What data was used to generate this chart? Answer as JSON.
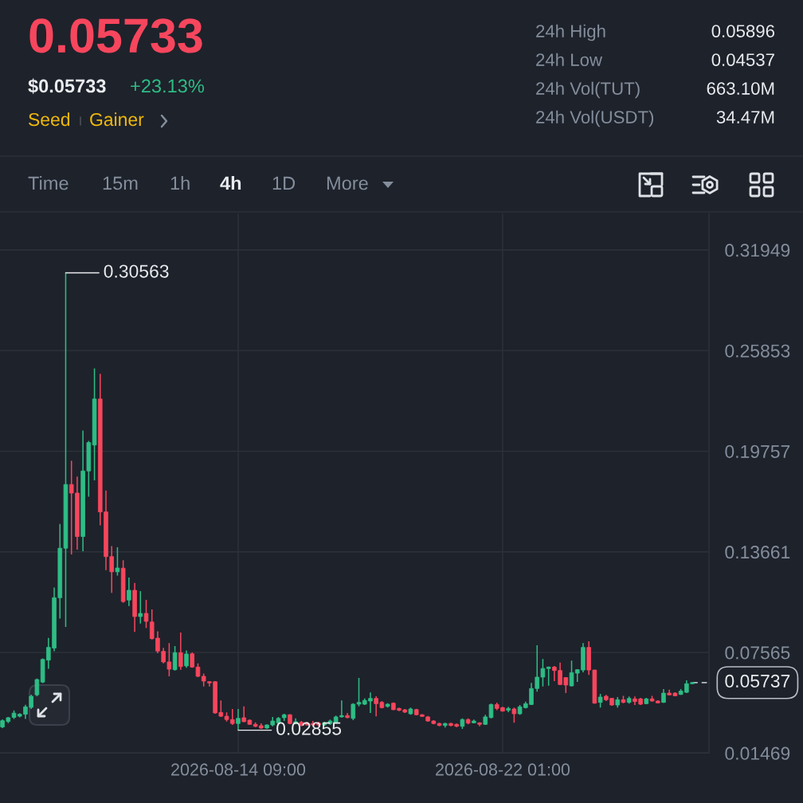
{
  "chart_data": {
    "type": "candlestick",
    "x": [
      "2026-08-07T13:00",
      "2026-08-07T17:00",
      "2026-08-07T21:00",
      "2026-08-08T01:00",
      "2026-08-08T05:00",
      "2026-08-08T09:00",
      "2026-08-08T13:00",
      "2026-08-08T17:00",
      "2026-08-08T21:00",
      "2026-08-09T01:00",
      "2026-08-09T05:00",
      "2026-08-09T09:00",
      "2026-08-09T13:00",
      "2026-08-09T17:00",
      "2026-08-09T21:00",
      "2026-08-10T01:00",
      "2026-08-10T05:00",
      "2026-08-10T09:00",
      "2026-08-10T13:00",
      "2026-08-10T17:00",
      "2026-08-10T21:00",
      "2026-08-11T01:00",
      "2026-08-11T05:00",
      "2026-08-11T09:00",
      "2026-08-11T13:00",
      "2026-08-11T17:00",
      "2026-08-11T21:00",
      "2026-08-12T01:00",
      "2026-08-12T05:00",
      "2026-08-12T09:00",
      "2026-08-12T13:00",
      "2026-08-12T17:00",
      "2026-08-12T21:00",
      "2026-08-13T01:00",
      "2026-08-13T05:00",
      "2026-08-13T09:00",
      "2026-08-13T13:00",
      "2026-08-13T17:00",
      "2026-08-13T21:00",
      "2026-08-14T01:00",
      "2026-08-14T05:00",
      "2026-08-14T09:00",
      "2026-08-14T13:00",
      "2026-08-14T17:00",
      "2026-08-14T21:00",
      "2026-08-15T01:00",
      "2026-08-15T05:00",
      "2026-08-15T09:00",
      "2026-08-15T13:00",
      "2026-08-15T17:00",
      "2026-08-15T21:00",
      "2026-08-16T01:00",
      "2026-08-16T05:00",
      "2026-08-16T09:00",
      "2026-08-16T13:00",
      "2026-08-16T17:00",
      "2026-08-16T21:00",
      "2026-08-17T01:00",
      "2026-08-17T05:00",
      "2026-08-17T09:00",
      "2026-08-17T13:00",
      "2026-08-17T17:00",
      "2026-08-17T21:00",
      "2026-08-18T01:00",
      "2026-08-18T05:00",
      "2026-08-18T09:00",
      "2026-08-18T13:00",
      "2026-08-18T17:00",
      "2026-08-18T21:00",
      "2026-08-19T01:00",
      "2026-08-19T05:00",
      "2026-08-19T09:00",
      "2026-08-19T13:00",
      "2026-08-19T17:00",
      "2026-08-19T21:00",
      "2026-08-20T01:00",
      "2026-08-20T05:00",
      "2026-08-20T09:00",
      "2026-08-20T13:00",
      "2026-08-20T17:00",
      "2026-08-20T21:00",
      "2026-08-21T01:00",
      "2026-08-21T05:00",
      "2026-08-21T09:00",
      "2026-08-21T13:00",
      "2026-08-21T17:00",
      "2026-08-21T21:00",
      "2026-08-22T01:00",
      "2026-08-22T05:00",
      "2026-08-22T09:00",
      "2026-08-22T13:00",
      "2026-08-22T17:00",
      "2026-08-22T21:00",
      "2026-08-23T01:00",
      "2026-08-23T05:00",
      "2026-08-23T09:00",
      "2026-08-23T13:00",
      "2026-08-23T17:00",
      "2026-08-23T21:00",
      "2026-08-24T01:00",
      "2026-08-24T05:00",
      "2026-08-24T09:00",
      "2026-08-24T13:00",
      "2026-08-24T17:00",
      "2026-08-24T21:00",
      "2026-08-25T01:00",
      "2026-08-25T05:00",
      "2026-08-25T09:00",
      "2026-08-25T13:00",
      "2026-08-25T17:00",
      "2026-08-25T21:00",
      "2026-08-26T01:00",
      "2026-08-26T05:00",
      "2026-08-26T09:00",
      "2026-08-26T13:00",
      "2026-08-26T17:00",
      "2026-08-26T21:00",
      "2026-08-27T01:00",
      "2026-08-27T05:00",
      "2026-08-27T09:00",
      "2026-08-27T13:00"
    ],
    "ohlc": [
      [
        0.0305,
        0.0351,
        0.0298,
        0.0343
      ],
      [
        0.0338,
        0.0366,
        0.0328,
        0.0361
      ],
      [
        0.0363,
        0.0405,
        0.0353,
        0.0389
      ],
      [
        0.037,
        0.0389,
        0.0363,
        0.0382
      ],
      [
        0.0382,
        0.0439,
        0.0353,
        0.0427
      ],
      [
        0.0424,
        0.0501,
        0.0414,
        0.0491
      ],
      [
        0.05,
        0.0599,
        0.0491,
        0.0592
      ],
      [
        0.0577,
        0.072,
        0.0571,
        0.0714
      ],
      [
        0.071,
        0.0844,
        0.0657,
        0.0787
      ],
      [
        0.0783,
        0.115,
        0.0764,
        0.1088
      ],
      [
        0.1088,
        0.1535,
        0.0962,
        0.1388
      ],
      [
        0.1388,
        0.30563,
        0.0911,
        0.1774
      ],
      [
        0.1774,
        0.1918,
        0.135,
        0.1722
      ],
      [
        0.1722,
        0.1822,
        0.1379,
        0.1459
      ],
      [
        0.1459,
        0.2101,
        0.1369,
        0.1856
      ],
      [
        0.1856,
        0.2038,
        0.17,
        0.2028
      ],
      [
        0.2013,
        0.2477,
        0.1799,
        0.2292
      ],
      [
        0.2292,
        0.2445,
        0.1526,
        0.1608
      ],
      [
        0.1608,
        0.1738,
        0.1255,
        0.1337
      ],
      [
        0.1337,
        0.1401,
        0.1117,
        0.1245
      ],
      [
        0.1245,
        0.1394,
        0.1222,
        0.1268
      ],
      [
        0.1267,
        0.1315,
        0.1057,
        0.1065
      ],
      [
        0.1074,
        0.121,
        0.1038,
        0.1133
      ],
      [
        0.1133,
        0.1178,
        0.0881,
        0.0974
      ],
      [
        0.0974,
        0.1128,
        0.0932,
        0.0993
      ],
      [
        0.0993,
        0.1075,
        0.0905,
        0.0945
      ],
      [
        0.0941,
        0.1017,
        0.0835,
        0.084
      ],
      [
        0.0843,
        0.0885,
        0.0752,
        0.0765
      ],
      [
        0.0763,
        0.0784,
        0.069,
        0.0699
      ],
      [
        0.0699,
        0.0813,
        0.0612,
        0.0655
      ],
      [
        0.0652,
        0.0795,
        0.0647,
        0.0755
      ],
      [
        0.0755,
        0.0877,
        0.0652,
        0.0671
      ],
      [
        0.0675,
        0.0768,
        0.0663,
        0.0747
      ],
      [
        0.0748,
        0.0757,
        0.0663,
        0.0668
      ],
      [
        0.0668,
        0.069,
        0.0607,
        0.0612
      ],
      [
        0.0612,
        0.0628,
        0.055,
        0.0583
      ],
      [
        0.0579,
        0.0583,
        0.055,
        0.0572
      ],
      [
        0.0579,
        0.0583,
        0.0385,
        0.039
      ],
      [
        0.0393,
        0.0466,
        0.0366,
        0.037
      ],
      [
        0.037,
        0.0393,
        0.0338,
        0.035
      ],
      [
        0.035,
        0.0414,
        0.0317,
        0.0326
      ],
      [
        0.0326,
        0.0414,
        0.02855,
        0.0357
      ],
      [
        0.0361,
        0.043,
        0.0334,
        0.0337
      ],
      [
        0.0346,
        0.0351,
        0.0317,
        0.0321
      ],
      [
        0.0321,
        0.0333,
        0.0304,
        0.0309
      ],
      [
        0.0313,
        0.0327,
        0.0293,
        0.0298
      ],
      [
        0.0298,
        0.0321,
        0.0293,
        0.0317
      ],
      [
        0.0317,
        0.0366,
        0.0309,
        0.0341
      ],
      [
        0.033,
        0.0366,
        0.0314,
        0.0357
      ],
      [
        0.0361,
        0.0385,
        0.0341,
        0.0379
      ],
      [
        0.0379,
        0.0382,
        0.0321,
        0.0326
      ],
      [
        0.0326,
        0.0357,
        0.0321,
        0.0337
      ],
      [
        0.0333,
        0.0341,
        0.0309,
        0.0314
      ],
      [
        0.0328,
        0.0337,
        0.0314,
        0.0317
      ],
      [
        0.0326,
        0.0341,
        0.0314,
        0.0317
      ],
      [
        0.0328,
        0.0337,
        0.0309,
        0.0317
      ],
      [
        0.0317,
        0.0337,
        0.0312,
        0.033
      ],
      [
        0.0326,
        0.035,
        0.0317,
        0.0341
      ],
      [
        0.033,
        0.0374,
        0.0326,
        0.0366
      ],
      [
        0.0366,
        0.0466,
        0.0362,
        0.0374
      ],
      [
        0.0374,
        0.039,
        0.0357,
        0.0362
      ],
      [
        0.0357,
        0.0449,
        0.0346,
        0.0443
      ],
      [
        0.0443,
        0.0602,
        0.043,
        0.0454
      ],
      [
        0.0443,
        0.0478,
        0.0438,
        0.0466
      ],
      [
        0.0462,
        0.0514,
        0.039,
        0.0478
      ],
      [
        0.0478,
        0.0491,
        0.0369,
        0.0446
      ],
      [
        0.0454,
        0.0462,
        0.0417,
        0.0422
      ],
      [
        0.043,
        0.0449,
        0.0422,
        0.0443
      ],
      [
        0.0449,
        0.0454,
        0.0406,
        0.041
      ],
      [
        0.0417,
        0.0422,
        0.0401,
        0.0406
      ],
      [
        0.0409,
        0.0414,
        0.039,
        0.0395
      ],
      [
        0.0385,
        0.0422,
        0.0379,
        0.0414
      ],
      [
        0.041,
        0.0415,
        0.0375,
        0.0379
      ],
      [
        0.0379,
        0.0382,
        0.0366,
        0.0369
      ],
      [
        0.0366,
        0.0371,
        0.0337,
        0.0341
      ],
      [
        0.0341,
        0.0346,
        0.0321,
        0.0326
      ],
      [
        0.0326,
        0.033,
        0.0309,
        0.0314
      ],
      [
        0.0314,
        0.033,
        0.0301,
        0.0326
      ],
      [
        0.0326,
        0.033,
        0.0309,
        0.0314
      ],
      [
        0.0321,
        0.0326,
        0.0304,
        0.0309
      ],
      [
        0.0309,
        0.0357,
        0.0293,
        0.035
      ],
      [
        0.035,
        0.0357,
        0.0321,
        0.0328
      ],
      [
        0.033,
        0.035,
        0.0327,
        0.0341
      ],
      [
        0.033,
        0.0333,
        0.0309,
        0.0321
      ],
      [
        0.0321,
        0.0379,
        0.0317,
        0.0366
      ],
      [
        0.0362,
        0.0446,
        0.0357,
        0.0441
      ],
      [
        0.0441,
        0.0452,
        0.0406,
        0.0417
      ],
      [
        0.0422,
        0.0427,
        0.0398,
        0.0401
      ],
      [
        0.0406,
        0.0427,
        0.0395,
        0.0417
      ],
      [
        0.0414,
        0.0422,
        0.033,
        0.0385
      ],
      [
        0.0385,
        0.0438,
        0.0379,
        0.0427
      ],
      [
        0.0422,
        0.0459,
        0.0417,
        0.0446
      ],
      [
        0.0441,
        0.0572,
        0.0438,
        0.0538
      ],
      [
        0.0538,
        0.08,
        0.0519,
        0.0607
      ],
      [
        0.0607,
        0.0717,
        0.055,
        0.0659
      ],
      [
        0.0659,
        0.0671,
        0.0555,
        0.0668
      ],
      [
        0.0668,
        0.0675,
        0.0583,
        0.0647
      ],
      [
        0.0647,
        0.0695,
        0.0559,
        0.0562
      ],
      [
        0.0604,
        0.0607,
        0.051,
        0.0559
      ],
      [
        0.0554,
        0.0707,
        0.055,
        0.0634
      ],
      [
        0.0631,
        0.0655,
        0.0578,
        0.0652
      ],
      [
        0.065,
        0.0813,
        0.0636,
        0.0787
      ],
      [
        0.0787,
        0.0824,
        0.062,
        0.065
      ],
      [
        0.065,
        0.0652,
        0.0446,
        0.0449
      ],
      [
        0.0454,
        0.0506,
        0.0422,
        0.0486
      ],
      [
        0.0491,
        0.0499,
        0.0462,
        0.047
      ],
      [
        0.0478,
        0.0481,
        0.0433,
        0.0438
      ],
      [
        0.0438,
        0.0486,
        0.0422,
        0.047
      ],
      [
        0.047,
        0.0494,
        0.0449,
        0.0454
      ],
      [
        0.0454,
        0.049,
        0.0446,
        0.0478
      ],
      [
        0.0475,
        0.049,
        0.0438,
        0.0459
      ],
      [
        0.0475,
        0.0481,
        0.0438,
        0.0443
      ],
      [
        0.0446,
        0.0481,
        0.0443,
        0.0475
      ],
      [
        0.0475,
        0.0494,
        0.0459,
        0.0462
      ],
      [
        0.0462,
        0.0467,
        0.0449,
        0.0451
      ],
      [
        0.0454,
        0.0535,
        0.0451,
        0.051
      ],
      [
        0.051,
        0.0531,
        0.0497,
        0.0499
      ],
      [
        0.051,
        0.0515,
        0.0491,
        0.0494
      ],
      [
        0.0502,
        0.0535,
        0.0499,
        0.0522
      ],
      [
        0.0515,
        0.0588,
        0.051,
        0.0567
      ],
      [
        0.0567,
        0.0577,
        0.0565,
        0.05737
      ]
    ],
    "colors": [
      "#2ebd85",
      "#2ebd85",
      "#2ebd85",
      "#2ebd85",
      "#2ebd85",
      "#2ebd85",
      "#2ebd85",
      "#2ebd85",
      "#2ebd85",
      "#2ebd85",
      "#2ebd85",
      "#2ebd85",
      "#f6465d",
      "#f6465d",
      "#2ebd85",
      "#2ebd85",
      "#2ebd85",
      "#f6465d",
      "#f6465d",
      "#f6465d",
      "#2ebd85",
      "#f6465d",
      "#2ebd85",
      "#f6465d",
      "#2ebd85",
      "#f6465d",
      "#f6465d",
      "#f6465d",
      "#f6465d",
      "#f6465d",
      "#2ebd85",
      "#f6465d",
      "#2ebd85",
      "#f6465d",
      "#f6465d",
      "#f6465d",
      "#f6465d",
      "#f6465d",
      "#f6465d",
      "#f6465d",
      "#f6465d",
      "#2ebd85",
      "#f6465d",
      "#f6465d",
      "#f6465d",
      "#f6465d",
      "#2ebd85",
      "#2ebd85",
      "#2ebd85",
      "#2ebd85",
      "#f6465d",
      "#2ebd85",
      "#f6465d",
      "#f6465d",
      "#f6465d",
      "#f6465d",
      "#2ebd85",
      "#2ebd85",
      "#2ebd85",
      "#2ebd85",
      "#f6465d",
      "#2ebd85",
      "#2ebd85",
      "#2ebd85",
      "#2ebd85",
      "#f6465d",
      "#f6465d",
      "#2ebd85",
      "#f6465d",
      "#f6465d",
      "#f6465d",
      "#2ebd85",
      "#f6465d",
      "#f6465d",
      "#f6465d",
      "#f6465d",
      "#f6465d",
      "#2ebd85",
      "#f6465d",
      "#f6465d",
      "#2ebd85",
      "#f6465d",
      "#2ebd85",
      "#f6465d",
      "#2ebd85",
      "#2ebd85",
      "#f6465d",
      "#f6465d",
      "#2ebd85",
      "#f6465d",
      "#2ebd85",
      "#2ebd85",
      "#2ebd85",
      "#2ebd85",
      "#2ebd85",
      "#2ebd85",
      "#f6465d",
      "#f6465d",
      "#f6465d",
      "#2ebd85",
      "#2ebd85",
      "#2ebd85",
      "#f6465d",
      "#f6465d",
      "#2ebd85",
      "#f6465d",
      "#f6465d",
      "#2ebd85",
      "#f6465d",
      "#2ebd85",
      "#f6465d",
      "#f6465d",
      "#2ebd85",
      "#f6465d",
      "#f6465d",
      "#2ebd85",
      "#f6465d",
      "#f6465d",
      "#2ebd85",
      "#2ebd85",
      "#2ebd85"
    ],
    "xlim": [
      "2026-08-07T11:17",
      "2026-08-28T00:36"
    ],
    "ylim": [
      0.01469,
      0.3416
    ],
    "xticks": [
      {
        "value": "2026-08-14T09:00",
        "label": "2026-08-14 09:00"
      },
      {
        "value": "2026-08-22T01:00",
        "label": "2026-08-22 01:00"
      }
    ],
    "yticks": [
      0.01469,
      0.07565,
      0.13661,
      0.19757,
      0.25853,
      0.31949
    ],
    "grid": true,
    "ref_lines": [
      {
        "axis": "y",
        "value": 0.05737,
        "label": "0.05737",
        "color": "#b7bdc6",
        "line_style": "dashed"
      }
    ],
    "annotations": [
      "0.05733",
      "$0.05733",
      "+23.13%",
      "Seed",
      "Gainer",
      "24h High",
      "0.05896",
      "24h Low",
      "0.04537",
      "24h Vol(TUT)",
      "663.10M",
      "24h Vol(USDT)",
      "34.47M",
      "Time",
      "15m",
      "1h",
      "4h",
      "1D",
      "More",
      {
        "text": "0.30563",
        "x": "2026-08-09T09:00",
        "y": 0.30563
      },
      {
        "text": "0.02855",
        "x": "2026-08-14T09:00",
        "y": 0.02855
      }
    ]
  }
}
